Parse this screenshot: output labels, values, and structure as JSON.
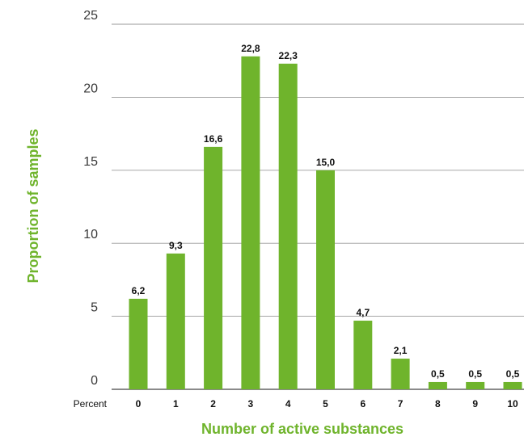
{
  "chart_data": {
    "type": "bar",
    "categories": [
      "0",
      "1",
      "2",
      "3",
      "4",
      "5",
      "6",
      "7",
      "8",
      "9",
      "10"
    ],
    "values": [
      6.2,
      9.3,
      16.6,
      22.8,
      22.3,
      15.0,
      4.7,
      2.1,
      0.5,
      0.5,
      0.5
    ],
    "data_labels": [
      "6,2",
      "9,3",
      "16,6",
      "22,8",
      "22,3",
      "15,0",
      "4,7",
      "2,1",
      "0,5",
      "0,5",
      "0,5"
    ],
    "xlabel": "Number of active substances",
    "ylabel": "Proportion of samples",
    "x_prefix_label": "Percent",
    "ylim": [
      0,
      25
    ],
    "yticks": [
      "0",
      "5",
      "10",
      "15",
      "20",
      "25"
    ],
    "grid": true,
    "colors": {
      "bar": "#6fb42c",
      "axis_title": "#6fb42c",
      "grid": "#9a9a9a"
    }
  }
}
